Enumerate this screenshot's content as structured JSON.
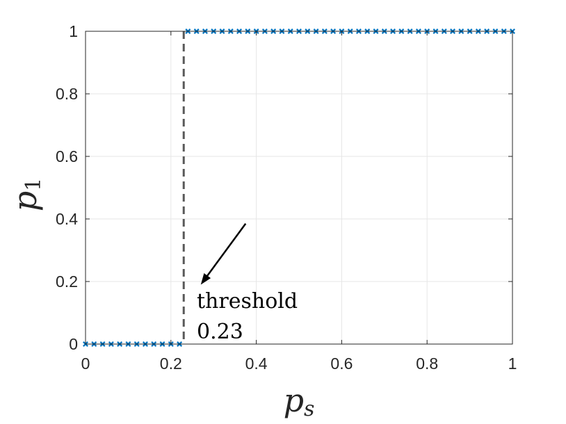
{
  "chart_data": {
    "type": "scatter",
    "xlabel": {
      "base": "p",
      "sub": "s"
    },
    "ylabel": {
      "base": "p",
      "sub": "1"
    },
    "xlim": [
      0,
      1
    ],
    "ylim": [
      0,
      1
    ],
    "xticks": [
      "0",
      "0.2",
      "0.4",
      "0.6",
      "0.8",
      "1"
    ],
    "yticks": [
      "0",
      "0.2",
      "0.4",
      "0.6",
      "0.8",
      "1"
    ],
    "grid": true,
    "marker": "x",
    "series_color": "#0072BD",
    "threshold": 0.23,
    "threshold_color": "#595959",
    "series": [
      {
        "x": [
          0,
          0.02,
          0.04,
          0.06,
          0.08,
          0.1,
          0.12,
          0.14,
          0.16,
          0.18,
          0.2,
          0.22,
          0.24,
          0.26,
          0.28,
          0.3,
          0.32,
          0.34,
          0.36,
          0.38,
          0.4,
          0.42,
          0.44,
          0.46,
          0.48,
          0.5,
          0.52,
          0.54,
          0.56,
          0.58,
          0.6,
          0.62,
          0.64,
          0.66,
          0.68,
          0.7,
          0.72,
          0.74,
          0.76,
          0.78,
          0.8,
          0.82,
          0.84,
          0.86,
          0.88,
          0.9,
          0.92,
          0.94,
          0.96,
          0.98,
          1.0
        ],
        "y": [
          0,
          0,
          0,
          0,
          0,
          0,
          0,
          0,
          0,
          0,
          0,
          0,
          1,
          1,
          1,
          1,
          1,
          1,
          1,
          1,
          1,
          1,
          1,
          1,
          1,
          1,
          1,
          1,
          1,
          1,
          1,
          1,
          1,
          1,
          1,
          1,
          1,
          1,
          1,
          1,
          1,
          1,
          1,
          1,
          1,
          1,
          1,
          1,
          1,
          1,
          1
        ]
      }
    ],
    "annotation": {
      "line1": "threshold",
      "line2": "0.23",
      "arrow_from": [
        0.375,
        0.385
      ],
      "arrow_to": [
        0.27,
        0.19
      ]
    }
  }
}
